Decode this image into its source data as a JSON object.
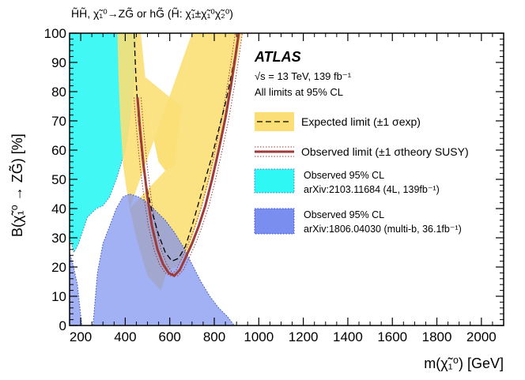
{
  "chart_data": {
    "type": "area",
    "top_title": "H̃H̃, χ̃₁⁰→ZG̃ or hG̃ (H̃: χ̃₁±χ̃₁⁰χ̃₂⁰)",
    "title": "ATLAS",
    "subtitle_lines": [
      "√s = 13 TeV, 139 fb⁻¹",
      "All limits at 95% CL"
    ],
    "xlabel": "m(χ̃₁⁰) [GeV]",
    "ylabel": "B(χ̃₁⁰ → ZG̃) [%]",
    "xlim": [
      150,
      2100
    ],
    "ylim": [
      0,
      100
    ],
    "x_ticks": [
      200,
      400,
      600,
      800,
      1000,
      1200,
      1400,
      1600,
      1800,
      2000
    ],
    "y_ticks": [
      0,
      10,
      20,
      30,
      40,
      50,
      60,
      70,
      80,
      90,
      100
    ],
    "grid": false,
    "legend_position": "right",
    "series": [
      {
        "name": "Expected limit (±1 σexp)",
        "kind": "expected_line_with_band",
        "color": "#000000",
        "band_color": "#fbdf76",
        "line": [
          [
            440,
            100
          ],
          [
            448,
            85
          ],
          [
            460,
            70
          ],
          [
            475,
            58
          ],
          [
            495,
            48
          ],
          [
            520,
            39
          ],
          [
            550,
            31
          ],
          [
            580,
            25
          ],
          [
            610,
            22
          ],
          [
            640,
            23
          ],
          [
            670,
            27
          ],
          [
            700,
            34
          ],
          [
            730,
            42
          ],
          [
            760,
            50
          ],
          [
            790,
            58
          ],
          [
            820,
            67
          ],
          [
            850,
            76
          ],
          [
            875,
            85
          ],
          [
            895,
            93
          ],
          [
            910,
            100
          ]
        ],
        "band_lower": [
          [
            365,
            100
          ],
          [
            370,
            85
          ],
          [
            378,
            70
          ],
          [
            390,
            55
          ],
          [
            405,
            47
          ],
          [
            420,
            40
          ]
        ],
        "band_upper": [
          [
            470,
            100
          ],
          [
            490,
            85
          ],
          [
            510,
            72
          ],
          [
            530,
            63
          ],
          [
            550,
            56
          ],
          [
            580,
            53
          ],
          [
            600,
            54
          ],
          [
            620,
            55
          ],
          [
            640,
            66
          ],
          [
            660,
            80
          ],
          [
            680,
            92
          ],
          [
            700,
            100
          ]
        ],
        "band_right_lower": [
          [
            590,
            19
          ],
          [
            630,
            20
          ],
          [
            680,
            25
          ],
          [
            730,
            37
          ],
          [
            780,
            50
          ],
          [
            830,
            65
          ],
          [
            880,
            82
          ],
          [
            920,
            98
          ],
          [
            925,
            100
          ]
        ],
        "band_right_upper": [
          [
            700,
            100
          ],
          [
            680,
            92
          ],
          [
            660,
            80
          ],
          [
            650,
            75
          ]
        ]
      },
      {
        "name": "Observed limit (±1 σtheory SUSY)",
        "kind": "observed_line_with_dotted",
        "color": "#9e3a3a",
        "line": [
          [
            455,
            78
          ],
          [
            468,
            66
          ],
          [
            482,
            55
          ],
          [
            500,
            44
          ],
          [
            520,
            34
          ],
          [
            545,
            26
          ],
          [
            570,
            21
          ],
          [
            595,
            18
          ],
          [
            620,
            17
          ],
          [
            645,
            19
          ],
          [
            670,
            23
          ],
          [
            700,
            28
          ],
          [
            730,
            34
          ],
          [
            760,
            41
          ],
          [
            790,
            50
          ],
          [
            820,
            60
          ],
          [
            850,
            71
          ],
          [
            875,
            82
          ],
          [
            895,
            92
          ],
          [
            910,
            100
          ]
        ]
      },
      {
        "name": "Observed 95% CL arXiv:2103.11684 (4L, 139fb⁻¹)",
        "kind": "region",
        "color": "#2ef7f4",
        "region": [
          [
            150,
            100
          ],
          [
            150,
            30
          ],
          [
            170,
            25
          ],
          [
            190,
            28
          ],
          [
            230,
            37
          ],
          [
            270,
            40
          ],
          [
            300,
            41
          ],
          [
            330,
            44
          ],
          [
            360,
            50
          ],
          [
            400,
            60
          ],
          [
            420,
            70
          ],
          [
            435,
            80
          ],
          [
            445,
            90
          ],
          [
            450,
            100
          ]
        ]
      },
      {
        "name": "Observed 95% CL arXiv:1806.04030 (multi-b, 36.1fb⁻¹)",
        "kind": "region",
        "color": "#7a8ef0",
        "region": [
          [
            150,
            25
          ],
          [
            165,
            21
          ],
          [
            185,
            14
          ],
          [
            205,
            0
          ],
          [
            255,
            0
          ],
          [
            275,
            18
          ],
          [
            300,
            28
          ],
          [
            330,
            34
          ],
          [
            360,
            40
          ],
          [
            390,
            44
          ],
          [
            420,
            45
          ],
          [
            460,
            44
          ],
          [
            500,
            42
          ],
          [
            540,
            39
          ],
          [
            580,
            36
          ],
          [
            620,
            32
          ],
          [
            660,
            27
          ],
          [
            700,
            21
          ],
          [
            740,
            15
          ],
          [
            780,
            10
          ],
          [
            820,
            6
          ],
          [
            860,
            3
          ],
          [
            890,
            0
          ],
          [
            150,
            0
          ]
        ]
      }
    ],
    "legend": [
      {
        "label": "Expected limit (±1 σexp)"
      },
      {
        "label": "Observed limit (±1 σtheory SUSY)"
      },
      {
        "label_lines": [
          "Observed 95% CL",
          "arXiv:2103.11684 (4L, 139fb⁻¹)"
        ]
      },
      {
        "label_lines": [
          "Observed 95% CL",
          "arXiv:1806.04030 (multi-b, 36.1fb⁻¹)"
        ]
      }
    ]
  }
}
